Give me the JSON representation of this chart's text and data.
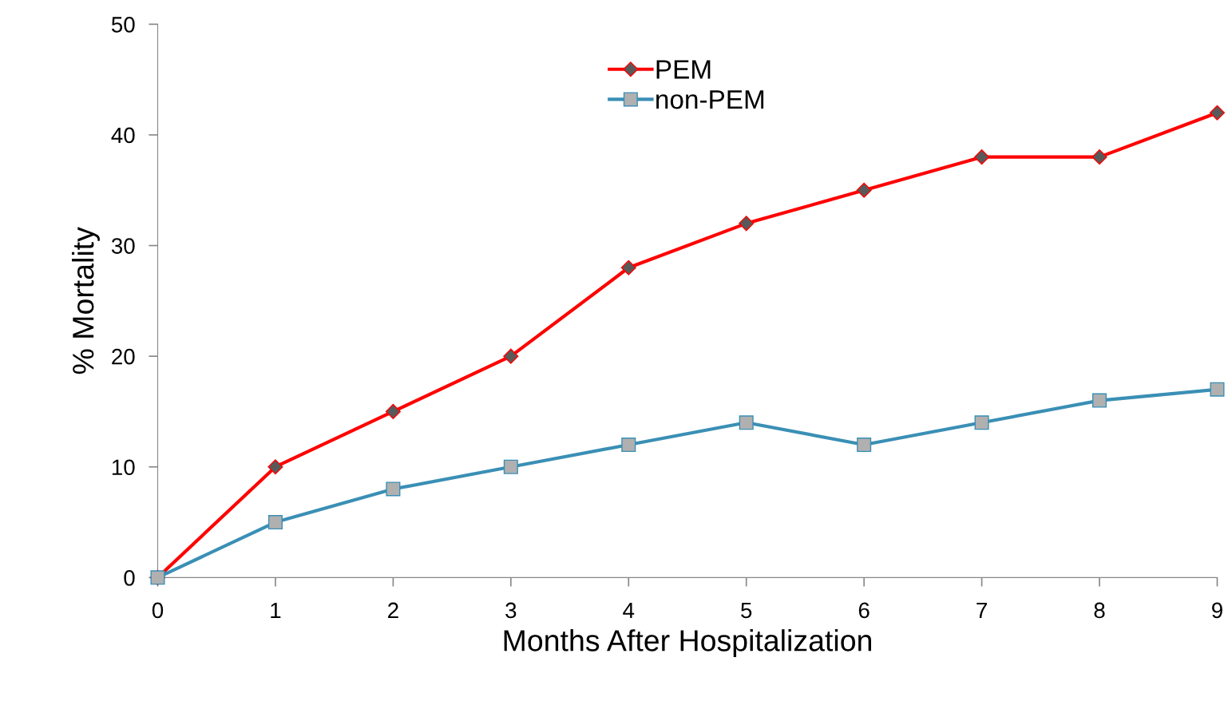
{
  "chart_data": {
    "type": "line",
    "xlabel": "Months After Hospitalization",
    "ylabel": "% Mortality",
    "x": [
      0,
      1,
      2,
      3,
      4,
      5,
      6,
      7,
      8,
      9
    ],
    "series": [
      {
        "name": "PEM",
        "color": "#ff0000",
        "marker": "diamond",
        "values": [
          0,
          10,
          15,
          20,
          28,
          32,
          35,
          38,
          38,
          42
        ]
      },
      {
        "name": "non-PEM",
        "color": "#3a8fb5",
        "marker": "square",
        "values": [
          0,
          5,
          8,
          10,
          12,
          14,
          12,
          14,
          16,
          17
        ]
      }
    ],
    "xlim": [
      0,
      9
    ],
    "xticks": [
      0,
      1,
      2,
      3,
      4,
      5,
      6,
      7,
      8,
      9
    ],
    "ylim": [
      0,
      50
    ],
    "yticks": [
      0,
      10,
      20,
      30,
      40,
      50
    ],
    "grid": false,
    "legend": "top",
    "line_style": "solid"
  }
}
